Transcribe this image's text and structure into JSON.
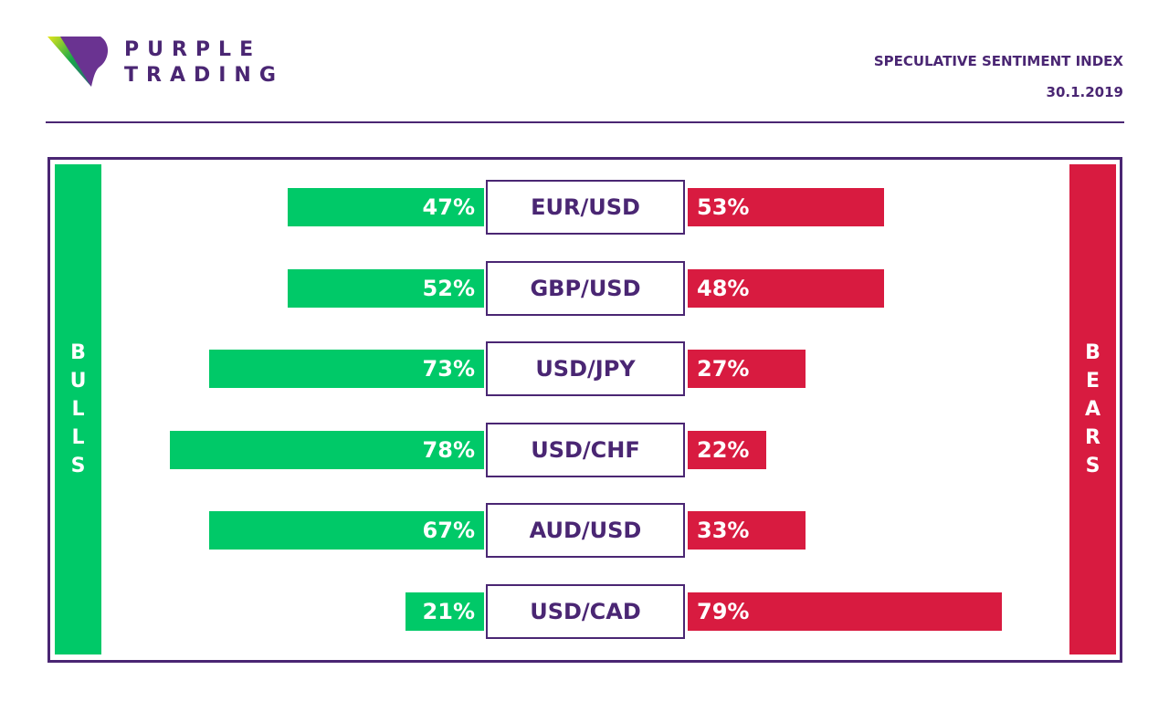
{
  "brand": {
    "line1": "PURPLE",
    "line2": "TRADING"
  },
  "header": {
    "title": "SPECULATIVE SENTIMENT INDEX",
    "date": "30.1.2019"
  },
  "colors": {
    "purple": "#4a2673",
    "bulls": "#00c968",
    "bears": "#d81b40"
  },
  "chart_data": {
    "type": "bar",
    "title": "SPECULATIVE SENTIMENT INDEX",
    "date": "30.1.2019",
    "left_label": "BULLS",
    "right_label": "BEARS",
    "categories": [
      "EUR/USD",
      "GBP/USD",
      "USD/JPY",
      "USD/CHF",
      "AUD/USD",
      "USD/CAD"
    ],
    "series": [
      {
        "name": "BULLS",
        "values": [
          47,
          52,
          73,
          78,
          67,
          21
        ],
        "labels": [
          "47%",
          "52%",
          "73%",
          "78%",
          "67%",
          "21%"
        ]
      },
      {
        "name": "BEARS",
        "values": [
          53,
          48,
          27,
          22,
          33,
          79
        ],
        "labels": [
          "53%",
          "48%",
          "27%",
          "22%",
          "33%",
          "79%"
        ]
      }
    ],
    "unit": "%"
  }
}
